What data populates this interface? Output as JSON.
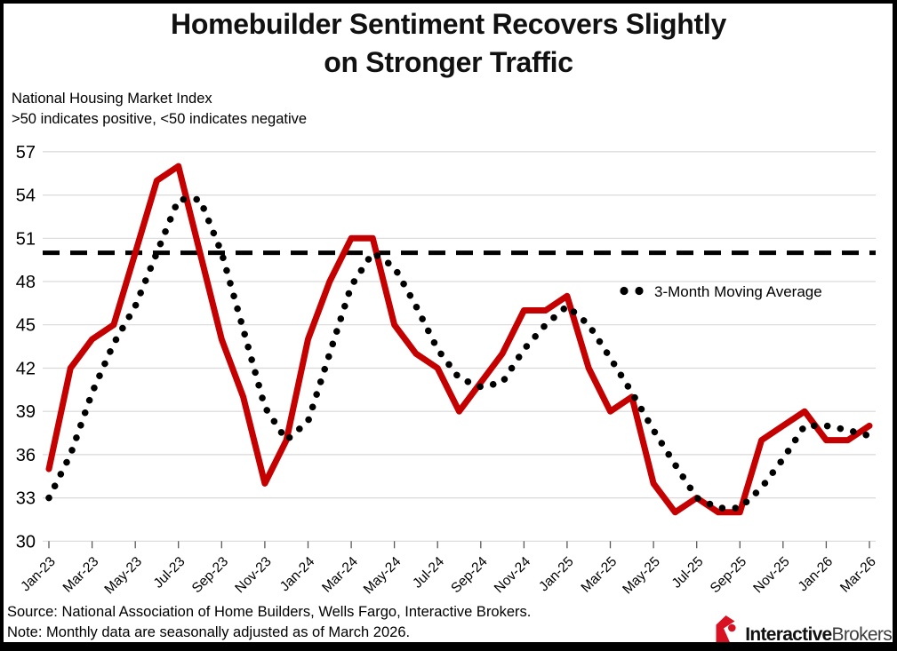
{
  "title": {
    "line1": "Homebuilder Sentiment Recovers Slightly",
    "line2": "on Stronger Traffic"
  },
  "subtitle": {
    "line1": "National Housing Market Index",
    "line2": ">50 indicates positive, <50 indicates negative"
  },
  "footer": {
    "source": "Source: National Association of Home Builders, Wells Fargo, Interactive Brokers.",
    "note": "Note: Monthly data are seasonally adjusted as of March 2026."
  },
  "logo": {
    "bold": "Interactive",
    "regular": "Brokers",
    "icon_color": "#d81222"
  },
  "chart_data": {
    "type": "line",
    "title": "Homebuilder Sentiment Recovers Slightly on Stronger Traffic",
    "ylabel": "National Housing Market Index",
    "ylim": [
      30,
      57
    ],
    "y_ticks": [
      30,
      33,
      36,
      39,
      42,
      45,
      48,
      51,
      54,
      57
    ],
    "grid": "horizontal",
    "label_every": 2,
    "categories": [
      "Jan-23",
      "Feb-23",
      "Mar-23",
      "Apr-23",
      "May-23",
      "Jun-23",
      "Jul-23",
      "Aug-23",
      "Sep-23",
      "Oct-23",
      "Nov-23",
      "Dec-23",
      "Jan-24",
      "Feb-24",
      "Mar-24",
      "Apr-24",
      "May-24",
      "Jun-24",
      "Jul-24",
      "Aug-24",
      "Sep-24",
      "Oct-24",
      "Nov-24",
      "Dec-24",
      "Jan-25",
      "Feb-25",
      "Mar-25",
      "Apr-25",
      "May-25",
      "Jun-25",
      "Jul-25",
      "Aug-25",
      "Sep-25",
      "Oct-25",
      "Nov-25",
      "Dec-25",
      "Jan-26",
      "Feb-26",
      "Mar-26"
    ],
    "series": [
      {
        "name": "National Housing Market Index",
        "style": "solid",
        "color": "#c40000",
        "values": [
          35,
          42,
          44,
          45,
          50,
          55,
          56,
          50,
          44,
          40,
          34,
          37,
          44,
          48,
          51,
          51,
          45,
          43,
          42,
          39,
          41,
          43,
          46,
          46,
          47,
          42,
          39,
          40,
          34,
          32,
          33,
          32,
          32,
          37,
          38,
          39,
          37,
          37,
          38
        ]
      },
      {
        "name": "3-Month Moving Average",
        "style": "dotted",
        "color": "#000000",
        "values": [
          33,
          36,
          40.3,
          43.7,
          46.3,
          50,
          53.7,
          53.7,
          50,
          44.7,
          39.3,
          37,
          38.3,
          43,
          47.7,
          50,
          49,
          46.3,
          43.3,
          41.3,
          40.7,
          41,
          43.3,
          45,
          46.3,
          45,
          42.7,
          40.3,
          37.7,
          35.3,
          33,
          32.3,
          32.3,
          33.7,
          35.7,
          38,
          38,
          37.7,
          37.3
        ]
      }
    ],
    "benchmark": {
      "value": 50,
      "style": "dashed",
      "color": "#000000"
    },
    "legend": {
      "label": "3-Month Moving Average",
      "position": "middle-right"
    },
    "colors": {
      "grid": "#d9d9d9",
      "tick": "#595959",
      "text": "#000000"
    }
  }
}
